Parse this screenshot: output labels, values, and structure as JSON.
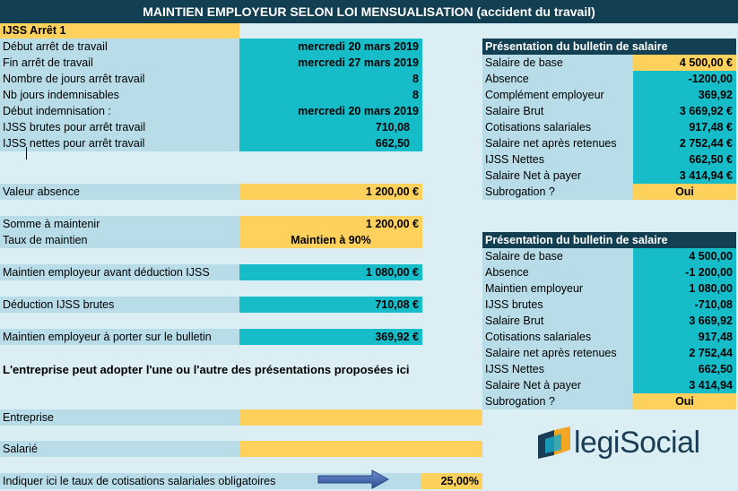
{
  "title": "MAINTIEN EMPLOYEUR SELON LOI MENSUALISATION (accident du travail)",
  "ijss_header": "IJSS Arrêt 1",
  "left_rows": [
    {
      "label": "Début arrêt de travail",
      "value": "mercredi 20 mars 2019"
    },
    {
      "label": "Fin arrêt de travail",
      "value": "mercredi 27 mars 2019"
    },
    {
      "label": "Nombre de jours arrêt travail",
      "value": "8"
    },
    {
      "label": "Nb jours indemnisables",
      "value": "8"
    },
    {
      "label": "Début indemnisation :",
      "value": "mercredi 20 mars 2019"
    },
    {
      "label": "IJSS brutes pour arrêt travail",
      "value": "710,08"
    },
    {
      "label": "IJSS nettes pour arrêt travail",
      "value": "662,50"
    }
  ],
  "valeur_absence": {
    "label": "Valeur absence",
    "value": "1 200,00 €"
  },
  "somme_maintenir": {
    "label": "Somme à maintenir",
    "value": "1 200,00 €"
  },
  "taux_maintien": {
    "label": "Taux de maintien",
    "value": "Maintien à 90%"
  },
  "maintien_avant": {
    "label": "Maintien employeur avant déduction IJSS",
    "value": "1 080,00 €"
  },
  "deduction": {
    "label": "Déduction IJSS brutes",
    "value": "710,08 €"
  },
  "maintien_bulletin": {
    "label": "Maintien employeur à porter sur le bulletin",
    "value": "369,92 €"
  },
  "note": "L'entreprise peut adopter l'une ou l'autre des présentations proposées ici",
  "entreprise": {
    "label": "Entreprise",
    "value": ""
  },
  "salarie": {
    "label": "Salarié",
    "value": ""
  },
  "taux_cotisations": {
    "label": "Indiquer ici le taux de cotisations salariales obligatoires",
    "value": "25,00%"
  },
  "bulletin1": {
    "header": "Présentation du bulletin de salaire",
    "rows": [
      {
        "label": "Salaire de base",
        "value": "4 500,00 €"
      },
      {
        "label": "Absence",
        "value": "-1200,00"
      },
      {
        "label": "Complément employeur",
        "value": "369,92"
      },
      {
        "label": "Salaire Brut",
        "value": "3 669,92 €"
      },
      {
        "label": "Cotisations salariales",
        "value": "917,48 €"
      },
      {
        "label": "Salaire net après retenues",
        "value": "2 752,44 €"
      },
      {
        "label": "IJSS Nettes",
        "value": "662,50 €"
      },
      {
        "label": "Salaire Net à payer",
        "value": "3 414,94 €"
      },
      {
        "label": "Subrogation ?",
        "value": "Oui"
      }
    ]
  },
  "bulletin2": {
    "header": "Présentation du bulletin de salaire",
    "rows": [
      {
        "label": "Salaire de base",
        "value": "4 500,00"
      },
      {
        "label": "Absence",
        "value": "-1 200,00"
      },
      {
        "label": "Maintien employeur",
        "value": "1 080,00"
      },
      {
        "label": "IJSS brutes",
        "value": "-710,08"
      },
      {
        "label": "Salaire Brut",
        "value": "3 669,92"
      },
      {
        "label": "Cotisations salariales",
        "value": "917,48"
      },
      {
        "label": "Salaire net après retenues",
        "value": "2 752,44"
      },
      {
        "label": "IJSS Nettes",
        "value": "662,50"
      },
      {
        "label": "Salaire Net à payer",
        "value": "3 414,94"
      },
      {
        "label": "Subrogation ?",
        "value": "Oui"
      }
    ]
  },
  "logo": {
    "text_legi": "legi",
    "text_social": "Social"
  }
}
